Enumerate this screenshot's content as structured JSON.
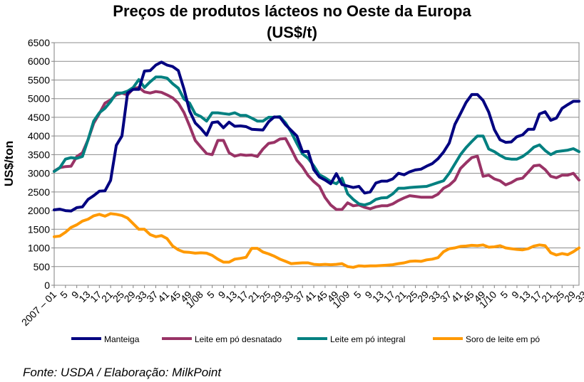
{
  "chart_data": {
    "type": "line",
    "title": "Preços de produtos lácteos no Oeste da Europa",
    "subtitle": "(US$/t)",
    "ylabel": "US$/ton",
    "xlabel": "",
    "ylim": [
      0,
      6500
    ],
    "yticks": [
      0,
      500,
      1000,
      1500,
      2000,
      2500,
      3000,
      3500,
      4000,
      4500,
      5000,
      5500,
      6000,
      6500
    ],
    "grid": true,
    "legend_position": "bottom",
    "x_tick_labels": [
      "2007 – 01",
      "5",
      "9",
      "13",
      "17",
      "21",
      "25",
      "29",
      "33",
      "37",
      "41",
      "45",
      "49",
      "1/08",
      "5",
      "9",
      "13",
      "17",
      "21",
      "25",
      "29",
      "33",
      "37",
      "41",
      "45",
      "49",
      "1/09",
      "5",
      "9",
      "13",
      "17",
      "21",
      "25",
      "29",
      "33",
      "37",
      "41",
      "45",
      "49",
      "1/10",
      "5",
      "9",
      "13",
      "17",
      "21",
      "25",
      "29",
      "33"
    ],
    "series": [
      {
        "name": "Manteiga",
        "color": "#000080",
        "values": [
          2020,
          2040,
          2000,
          1990,
          2080,
          2100,
          2300,
          2400,
          2520,
          2530,
          2810,
          3750,
          4000,
          5150,
          5250,
          5250,
          5740,
          5750,
          5900,
          5980,
          5900,
          5860,
          5750,
          5260,
          4670,
          4350,
          4200,
          4020,
          4360,
          4380,
          4220,
          4370,
          4260,
          4270,
          4250,
          4180,
          4170,
          4160,
          4380,
          4510,
          4500,
          4300,
          4150,
          4000,
          3580,
          3590,
          3100,
          2900,
          2820,
          2720,
          2990,
          2700,
          2660,
          2620,
          2650,
          2470,
          2500,
          2740,
          2790,
          2790,
          2850,
          3000,
          2960,
          3040,
          3090,
          3110,
          3190,
          3260,
          3390,
          3570,
          3810,
          4310,
          4600,
          4900,
          5110,
          5110,
          4950,
          4640,
          4170,
          3900,
          3830,
          3840,
          3980,
          4030,
          4180,
          4180,
          4590,
          4650,
          4420,
          4480,
          4740,
          4840,
          4930,
          4930
        ]
      },
      {
        "name": "Leite em pó desnatado",
        "color": "#993366",
        "values": [
          3060,
          3150,
          3180,
          3190,
          3450,
          3550,
          3900,
          4340,
          4600,
          4880,
          4970,
          5100,
          5150,
          5100,
          5270,
          5300,
          5180,
          5150,
          5190,
          5170,
          5100,
          5020,
          4880,
          4630,
          4270,
          3880,
          3700,
          3530,
          3500,
          3880,
          3880,
          3550,
          3460,
          3500,
          3480,
          3490,
          3450,
          3650,
          3800,
          3830,
          3920,
          3930,
          3650,
          3350,
          3170,
          2940,
          2780,
          2650,
          2350,
          2150,
          2030,
          2030,
          2210,
          2130,
          2150,
          2090,
          2050,
          2100,
          2130,
          2130,
          2180,
          2270,
          2340,
          2400,
          2380,
          2360,
          2360,
          2360,
          2440,
          2600,
          2680,
          2820,
          3130,
          3280,
          3420,
          3460,
          2920,
          2950,
          2850,
          2800,
          2690,
          2750,
          2840,
          2870,
          3030,
          3200,
          3220,
          3100,
          2920,
          2880,
          2950,
          2950,
          3000,
          2820
        ]
      },
      {
        "name": "Leite em pó integral",
        "color": "#008080",
        "values": [
          3050,
          3150,
          3380,
          3420,
          3400,
          3450,
          3900,
          4400,
          4620,
          4740,
          4920,
          5150,
          5150,
          5200,
          5300,
          5510,
          5300,
          5450,
          5580,
          5580,
          5550,
          5400,
          5280,
          4990,
          4880,
          4590,
          4520,
          4400,
          4620,
          4620,
          4600,
          4580,
          4620,
          4550,
          4550,
          4480,
          4400,
          4400,
          4500,
          4500,
          4520,
          4350,
          4100,
          3800,
          3520,
          3400,
          3200,
          2960,
          2880,
          2780,
          2720,
          2870,
          2450,
          2300,
          2180,
          2150,
          2200,
          2300,
          2340,
          2350,
          2450,
          2600,
          2600,
          2620,
          2630,
          2640,
          2650,
          2700,
          2750,
          2800,
          3000,
          3250,
          3500,
          3690,
          3850,
          4000,
          4000,
          3650,
          3580,
          3480,
          3400,
          3380,
          3380,
          3450,
          3560,
          3700,
          3760,
          3610,
          3500,
          3580,
          3600,
          3620,
          3660,
          3580
        ]
      },
      {
        "name": "Soro de leite em pó",
        "color": "#FF9900",
        "values": [
          1300,
          1320,
          1420,
          1550,
          1620,
          1720,
          1770,
          1860,
          1900,
          1850,
          1920,
          1900,
          1870,
          1800,
          1650,
          1500,
          1500,
          1360,
          1300,
          1330,
          1250,
          1050,
          950,
          890,
          880,
          860,
          870,
          860,
          800,
          700,
          620,
          620,
          700,
          720,
          750,
          990,
          990,
          890,
          840,
          780,
          700,
          640,
          580,
          590,
          600,
          600,
          560,
          550,
          560,
          550,
          560,
          580,
          500,
          480,
          520,
          510,
          520,
          520,
          530,
          540,
          550,
          580,
          600,
          640,
          650,
          640,
          680,
          700,
          740,
          900,
          980,
          1000,
          1040,
          1050,
          1070,
          1060,
          1080,
          1020,
          1030,
          1060,
          1000,
          980,
          960,
          950,
          980,
          1050,
          1080,
          1060,
          870,
          810,
          850,
          820,
          900,
          1000
        ]
      }
    ]
  },
  "footer": {
    "source": "Fonte: USDA / Elaboração: MilkPoint"
  }
}
